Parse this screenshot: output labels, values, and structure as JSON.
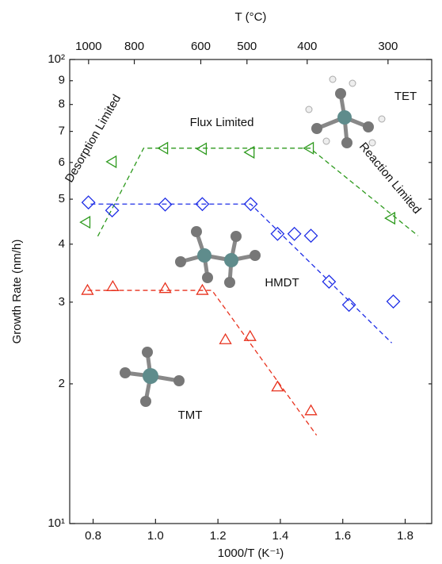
{
  "chart_data": {
    "type": "scatter",
    "xlabel": "1000/T (K⁻¹)",
    "ylabel": "Growth Rate (nm/h)",
    "x2label": "T (°C)",
    "xlim": [
      0.725,
      1.885
    ],
    "ylim": [
      10,
      100
    ],
    "log_y": true,
    "xticks": [
      0.8,
      {
        "value": 1,
        "label": "1.0"
      },
      1.2,
      1.4,
      1.6,
      1.8
    ],
    "yticks": [
      {
        "value": 10,
        "label": "10¹"
      },
      {
        "value": 20,
        "label": "2"
      },
      {
        "value": 30,
        "label": "3"
      },
      {
        "value": 40,
        "label": "4"
      },
      {
        "value": 50,
        "label": "5"
      },
      {
        "value": 60,
        "label": "6"
      },
      {
        "value": 70,
        "label": "7"
      },
      {
        "value": 80,
        "label": "8"
      },
      {
        "value": 90,
        "label": "9"
      },
      {
        "value": 100,
        "label": "10²"
      }
    ],
    "x2ticks": [
      {
        "value": 0.7855,
        "label": "1000"
      },
      {
        "value": 0.932,
        "label": "800"
      },
      {
        "value": 1.145,
        "label": "600"
      },
      {
        "value": 1.293,
        "label": "500"
      },
      {
        "value": 1.486,
        "label": "400"
      },
      {
        "value": 1.745,
        "label": "300"
      }
    ],
    "series": [
      {
        "color": "#e8321e",
        "marker": "triangle-up",
        "x": [
          0.782,
          0.863,
          1.031,
          1.15,
          1.224,
          1.303,
          1.391,
          1.498
        ],
        "values": [
          31.8,
          32.4,
          32.1,
          31.8,
          24.9,
          25.3,
          19.7,
          17.5
        ]
      },
      {
        "color": "#1f2ee6",
        "marker": "diamond",
        "x": [
          0.785,
          0.861,
          1.031,
          1.15,
          1.305,
          1.391,
          1.445,
          1.498,
          1.556,
          1.62,
          1.762
        ],
        "values": [
          49.2,
          47.3,
          48.7,
          48.8,
          48.8,
          42.1,
          42.1,
          41.7,
          33.2,
          29.6,
          30.1
        ]
      },
      {
        "color": "#2e9a1e",
        "marker": "triangle-left",
        "x": [
          0.777,
          0.861,
          1.026,
          1.15,
          1.303,
          1.493,
          1.754
        ],
        "values": [
          44.6,
          60.2,
          64.4,
          64.2,
          63.1,
          64.4,
          45.5
        ]
      }
    ],
    "fits": [
      {
        "color": "#e8321e",
        "x": [
          0.782,
          1.181,
          1.516
        ],
        "values": [
          31.8,
          31.8,
          15.5
        ]
      },
      {
        "color": "#1f2ee6",
        "x": [
          0.792,
          1.305,
          1.757
        ],
        "values": [
          48.8,
          48.8,
          24.5
        ]
      },
      {
        "color": "#2e9a1e",
        "x": [
          0.815,
          0.962,
          1.495,
          1.841
        ],
        "values": [
          41.6,
          64.4,
          64.4,
          41.7
        ]
      }
    ],
    "annotations": [
      "Flux Limited",
      "Desorption Limited",
      "Reaction Limited",
      "TET",
      "HMDT",
      "TMT"
    ]
  }
}
